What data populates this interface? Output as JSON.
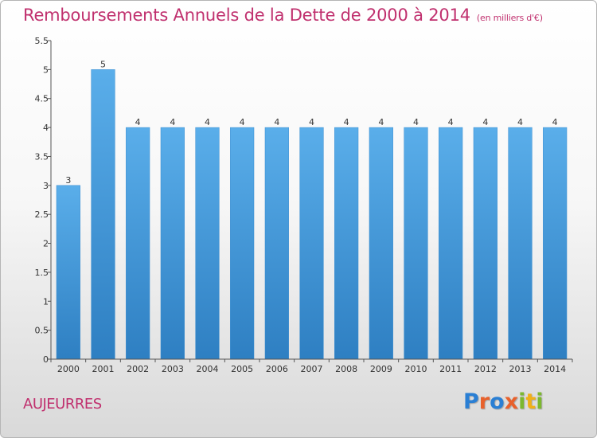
{
  "title": "Remboursements Annuels de la Dette de 2000 à 2014",
  "unit": "(en milliers d'€)",
  "commune": "AUJEURRES",
  "logo": {
    "letters": [
      {
        "char": "P",
        "color": "#2a7fd4"
      },
      {
        "char": "r",
        "color": "#e8612c"
      },
      {
        "char": "o",
        "color": "#2a7fd4"
      },
      {
        "char": "x",
        "color": "#e8612c"
      },
      {
        "char": "i",
        "color": "#7cb82f"
      },
      {
        "char": "t",
        "color": "#f0b019"
      },
      {
        "char": "i",
        "color": "#7cb82f"
      }
    ]
  },
  "chart_data": {
    "type": "bar",
    "title": "Remboursements Annuels de la Dette de 2000 à 2014",
    "categories": [
      "2000",
      "2001",
      "2002",
      "2003",
      "2004",
      "2005",
      "2006",
      "2007",
      "2008",
      "2009",
      "2010",
      "2011",
      "2012",
      "2013",
      "2014"
    ],
    "values": [
      3,
      5,
      4,
      4,
      4,
      4,
      4,
      4,
      4,
      4,
      4,
      4,
      4,
      4,
      4
    ],
    "data_labels": [
      "3",
      "5",
      "4",
      "4",
      "4",
      "4",
      "4",
      "4",
      "4",
      "4",
      "4",
      "4",
      "4",
      "4",
      "4"
    ],
    "ylim": [
      0,
      5.5
    ],
    "yticks": [
      0,
      0.5,
      1,
      1.5,
      2,
      2.5,
      3,
      3.5,
      4,
      4.5,
      5,
      5.5
    ],
    "ytick_labels": [
      "0",
      "0.5",
      "1",
      "1.5",
      "2",
      "2.5",
      "3",
      "3.5",
      "4",
      "4.5",
      "5",
      "5.5"
    ],
    "bar_color": "#4a9fe0",
    "grid": false
  }
}
